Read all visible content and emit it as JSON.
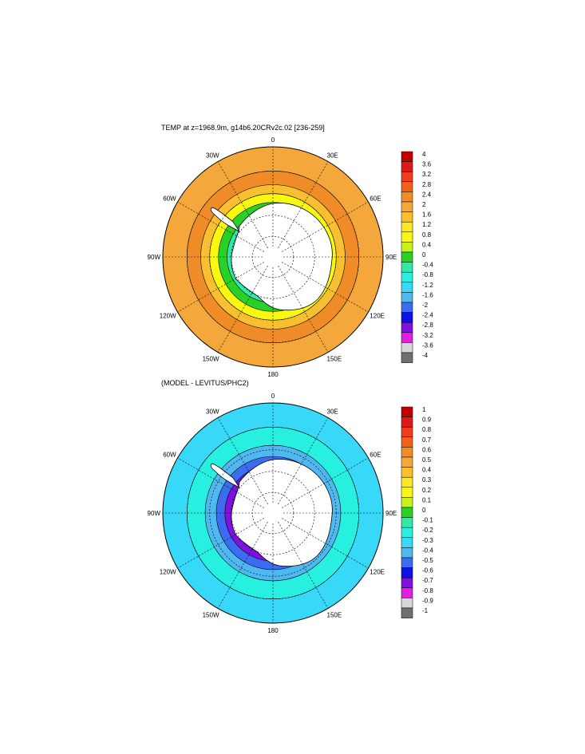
{
  "chart_data": [
    {
      "type": "heatmap",
      "title": "TEMP at z=1968.9m, g14b6.20CRv2c.02 [236-259]",
      "projection": "south-polar-stereographic",
      "lon_labels": [
        "0",
        "30E",
        "60E",
        "90E",
        "120E",
        "150E",
        "180",
        "150W",
        "120W",
        "90W",
        "60W",
        "30W"
      ],
      "colorbar": {
        "labels": [
          "4",
          "3.6",
          "3.2",
          "2.8",
          "2.4",
          "2",
          "1.6",
          "1.2",
          "0.8",
          "0.4",
          "0",
          "-0.4",
          "-0.8",
          "-1.2",
          "-1.6",
          "-2",
          "-2.4",
          "-2.8",
          "-3.2",
          "-3.6",
          "-4"
        ],
        "colors": [
          "#c00000",
          "#e01818",
          "#f03c1c",
          "#f4601c",
          "#f08c28",
          "#f4a83c",
          "#f8c030",
          "#fce820",
          "#f8f810",
          "#c8f020",
          "#28d028",
          "#30e8a8",
          "#28f0e0",
          "#38d8f8",
          "#50b8f0",
          "#3c6cf0",
          "#1010e8",
          "#8010e0",
          "#e020e0",
          "#d8d8d8",
          "#707070"
        ]
      },
      "zones": [
        {
          "lat": -50,
          "value": 2.2
        },
        {
          "lat": -56,
          "value": 1.4
        },
        {
          "lat": -60,
          "value": 0.6
        },
        {
          "lat": -64,
          "value": -0.2
        },
        {
          "lat": -68,
          "value": -0.6
        }
      ]
    },
    {
      "type": "heatmap",
      "title": "(MODEL - LEVITUS/PHC2)",
      "projection": "south-polar-stereographic",
      "lon_labels": [
        "0",
        "30E",
        "60E",
        "90E",
        "120E",
        "150E",
        "180",
        "150W",
        "120W",
        "90W",
        "60W",
        "30W"
      ],
      "colorbar": {
        "labels": [
          "1",
          "0.9",
          "0.8",
          "0.7",
          "0.6",
          "0.5",
          "0.4",
          "0.3",
          "0.2",
          "0.1",
          "0",
          "-0.1",
          "-0.2",
          "-0.3",
          "-0.4",
          "-0.5",
          "-0.6",
          "-0.7",
          "-0.8",
          "-0.9",
          "-1"
        ],
        "colors": [
          "#c00000",
          "#e01818",
          "#f03c1c",
          "#f4601c",
          "#f08c28",
          "#f4a83c",
          "#f8c030",
          "#fce820",
          "#f8f810",
          "#c8f020",
          "#28d028",
          "#30e8a8",
          "#28f0e0",
          "#38d8f8",
          "#50b8f0",
          "#3c6cf0",
          "#1010e8",
          "#8010e0",
          "#e020e0",
          "#d8d8d8",
          "#707070"
        ]
      },
      "zones": [
        {
          "lat": -50,
          "value": -0.25
        },
        {
          "lat": -58,
          "value": -0.4
        },
        {
          "lat": -63,
          "value": -0.55
        },
        {
          "lat": -67,
          "value": -0.75
        }
      ]
    }
  ]
}
